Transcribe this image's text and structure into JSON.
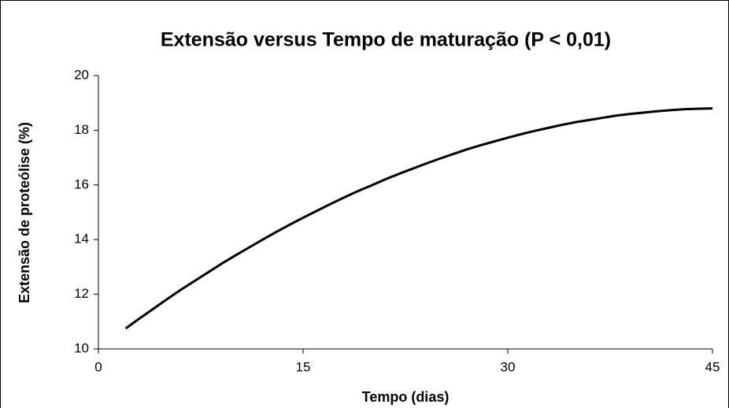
{
  "chart_data": {
    "type": "line",
    "title": "Extensão versus Tempo de maturação (P < 0,01)",
    "xlabel": "Tempo (dias)",
    "ylabel": "Extensão de proteólise (%)",
    "x": [
      2,
      3,
      4,
      5,
      6,
      7,
      8,
      9,
      10,
      11,
      12,
      13,
      14,
      15,
      16,
      17,
      18,
      19,
      20,
      21,
      22,
      23,
      24,
      25,
      26,
      27,
      28,
      29,
      30,
      31,
      32,
      33,
      34,
      35,
      36,
      37,
      38,
      39,
      40,
      41,
      42,
      43,
      44,
      45
    ],
    "series": [
      {
        "name": "Extensão",
        "color": "#000000",
        "values": [
          10.75,
          11.11,
          11.46,
          11.81,
          12.15,
          12.47,
          12.79,
          13.11,
          13.41,
          13.7,
          13.99,
          14.27,
          14.54,
          14.8,
          15.05,
          15.3,
          15.54,
          15.77,
          15.98,
          16.2,
          16.4,
          16.59,
          16.78,
          16.96,
          17.13,
          17.3,
          17.45,
          17.59,
          17.73,
          17.86,
          17.98,
          18.09,
          18.2,
          18.3,
          18.38,
          18.46,
          18.54,
          18.6,
          18.65,
          18.7,
          18.74,
          18.77,
          18.79,
          18.8
        ]
      }
    ],
    "xlim": [
      0,
      45
    ],
    "xticks": [
      0,
      15,
      30,
      45
    ],
    "ylim": [
      10,
      20
    ],
    "yticks": [
      10,
      12,
      14,
      16,
      18,
      20
    ],
    "grid": false
  }
}
